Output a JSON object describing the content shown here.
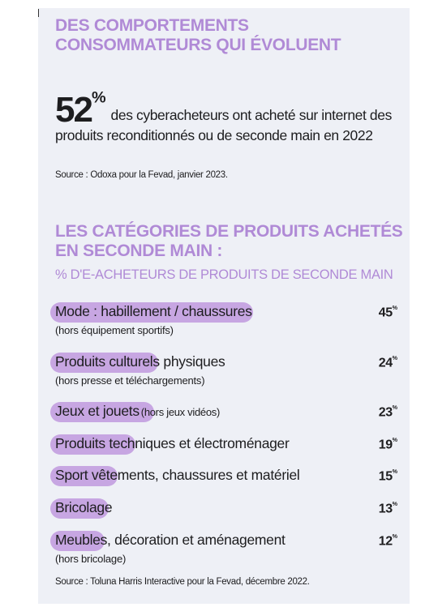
{
  "title": "DES COMPORTEMENTS CONSOMMATEURS QUI ÉVOLUENT",
  "stat": {
    "label": "52%",
    "text": "des cyberacheteurs ont acheté sur internet des produits reconditionnés ou de seconde main en 2022",
    "source": "Source : Odoxa pour la Fevad, janvier 2023."
  },
  "chart_data": {
    "type": "bar",
    "title": "LES CATÉGORIES DE PRODUITS ACHETÉS EN SECONDE MAIN :",
    "subtitle": "% D'E-ACHETEURS DE PRODUITS DE SECONDE MAIN",
    "categories": [
      "Mode : habillement / chaussures",
      "Produits culturels physiques",
      "Jeux et jouets",
      "Produits techniques et électroménager",
      "Sport vêtements, chaussures et matériel",
      "Bricolage",
      "Meubles, décoration et aménagement"
    ],
    "notes": [
      "(hors équipement sportifs)",
      "(hors presse et téléchargements)",
      "(hors jeux vidéos)",
      null,
      null,
      null,
      "(hors bricolage)"
    ],
    "values": [
      45,
      24,
      23,
      19,
      15,
      13,
      12
    ],
    "value_labels": [
      "45%",
      "24%",
      "23%",
      "19%",
      "15%",
      "13%",
      "12%"
    ],
    "color": "#c7a6e2",
    "source": "Source : Toluna Harris Interactive pour la Fevad, décembre 2022."
  }
}
